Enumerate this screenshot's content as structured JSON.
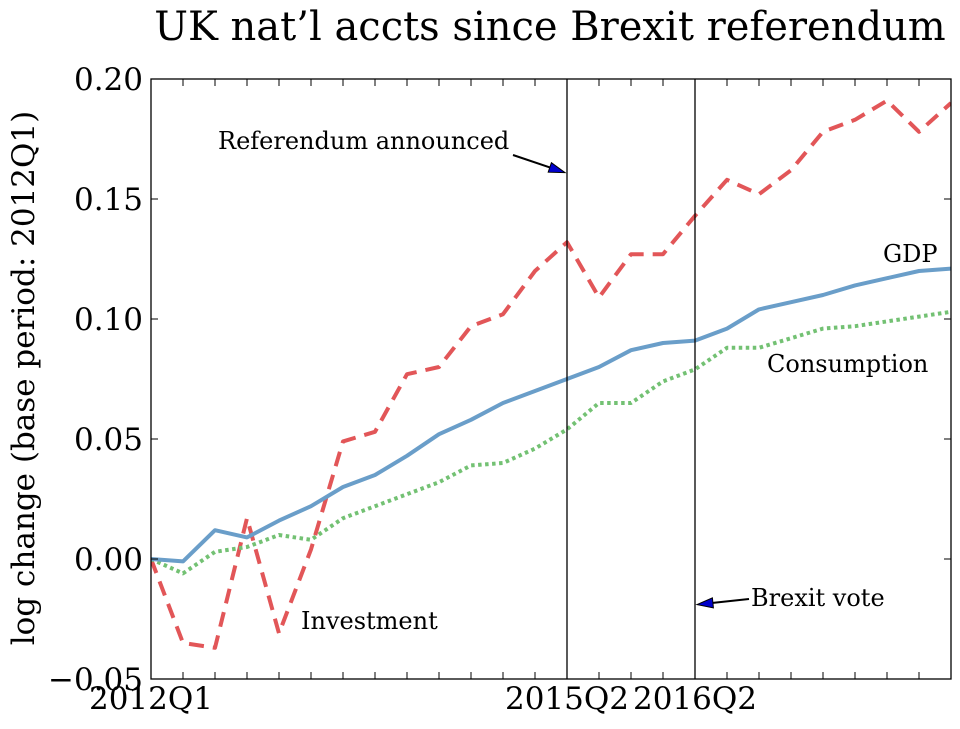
{
  "chart_data": {
    "type": "line",
    "title": "UK nat’l accts since Brexit referendum",
    "xlabel": "",
    "ylabel": "log change (base period: 2012Q1)",
    "x": [
      "2012Q1",
      "2012Q2",
      "2012Q3",
      "2012Q4",
      "2013Q1",
      "2013Q2",
      "2013Q3",
      "2013Q4",
      "2014Q1",
      "2014Q2",
      "2014Q3",
      "2014Q4",
      "2015Q1",
      "2015Q2",
      "2015Q3",
      "2015Q4",
      "2016Q1",
      "2016Q2",
      "2016Q3",
      "2016Q4",
      "2017Q1",
      "2017Q2",
      "2017Q3",
      "2017Q4",
      "2018Q1",
      "2018Q2"
    ],
    "xticks": [
      "2012Q1",
      "2015Q2",
      "2016Q2"
    ],
    "ylim": [
      -0.05,
      0.2
    ],
    "yticks": [
      "−0.05",
      "0.00",
      "0.05",
      "0.10",
      "0.15",
      "0.20"
    ],
    "grid": false,
    "series": [
      {
        "name": "GDP",
        "color": "#6a9ec9",
        "style": "solid",
        "values": [
          0.0,
          -0.001,
          0.012,
          0.009,
          0.016,
          0.022,
          0.03,
          0.035,
          0.043,
          0.052,
          0.058,
          0.065,
          0.07,
          0.075,
          0.08,
          0.087,
          0.09,
          0.091,
          0.096,
          0.104,
          0.107,
          0.11,
          0.114,
          0.117,
          0.12,
          0.121
        ]
      },
      {
        "name": "Consumption",
        "color": "#73c173",
        "style": "dotted",
        "values": [
          0.0,
          -0.006,
          0.003,
          0.005,
          0.01,
          0.008,
          0.017,
          0.022,
          0.027,
          0.032,
          0.039,
          0.04,
          0.046,
          0.054,
          0.065,
          0.065,
          0.074,
          0.079,
          0.088,
          0.088,
          0.092,
          0.096,
          0.097,
          0.099,
          0.101,
          0.103
        ]
      },
      {
        "name": "Investment",
        "color": "#e25658",
        "style": "dashed",
        "values": [
          0.0,
          -0.035,
          -0.037,
          0.017,
          -0.031,
          0.004,
          0.049,
          0.053,
          0.077,
          0.08,
          0.097,
          0.102,
          0.12,
          0.132,
          0.109,
          0.127,
          0.127,
          0.143,
          0.158,
          0.152,
          0.162,
          0.178,
          0.183,
          0.191,
          0.178,
          0.19
        ]
      }
    ],
    "vlines": [
      {
        "x": "2015Q2"
      },
      {
        "x": "2016Q2"
      }
    ],
    "annotations": [
      {
        "text": "Referendum announced",
        "target_x": "2015Q2",
        "target_y": 0.161
      },
      {
        "text": "Brexit vote",
        "target_x": "2016Q2",
        "target_y": -0.019
      },
      {
        "text": "GDP",
        "near_series": "GDP"
      },
      {
        "text": "Consumption",
        "near_series": "Consumption"
      },
      {
        "text": "Investment",
        "near_series": "Investment"
      }
    ]
  }
}
